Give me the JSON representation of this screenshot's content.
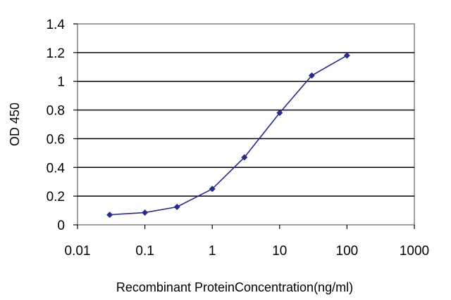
{
  "chart_data": {
    "type": "line",
    "title": "",
    "xlabel": "Recombinant ProteinConcentration(ng/ml)",
    "ylabel": "OD 450",
    "x_scale": "log",
    "xlim": [
      0.01,
      1000
    ],
    "ylim": [
      0,
      1.4
    ],
    "x_ticks": [
      0.01,
      0.1,
      1,
      10,
      100,
      1000
    ],
    "x_tick_labels": [
      "0.01",
      "0.1",
      "1",
      "10",
      "100",
      "1000"
    ],
    "y_ticks": [
      0,
      0.2,
      0.4,
      0.6,
      0.8,
      1,
      1.2,
      1.4
    ],
    "y_tick_labels": [
      "0",
      "0.2",
      "0.4",
      "0.6",
      "0.8",
      "1",
      "1.2",
      "1.4"
    ],
    "grid": "horizontal",
    "series": [
      {
        "x": [
          0.03,
          0.1,
          0.3,
          1,
          3,
          10,
          30,
          100
        ],
        "y": [
          0.07,
          0.085,
          0.125,
          0.25,
          0.47,
          0.78,
          1.04,
          1.18
        ],
        "color": "#2a2a8c"
      }
    ]
  }
}
